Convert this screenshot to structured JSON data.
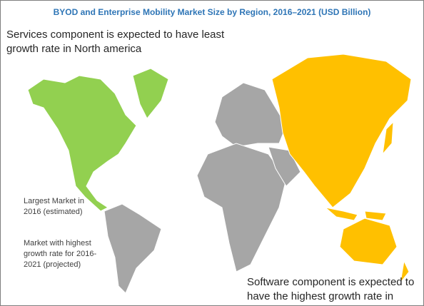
{
  "header": {
    "title": "BYOD and Enterprise Mobility Market Size by Region, 2016–2021 (USD Billion)"
  },
  "annotations": [
    "Services component is expected to  have least growth rate in North america",
    "Software component is expected to have the highest growth rate in APAC"
  ],
  "legend": [
    "Largest Market in 2016 (estimated)",
    "Market with highest growth rate for 2016-2021 (projected)"
  ]
}
